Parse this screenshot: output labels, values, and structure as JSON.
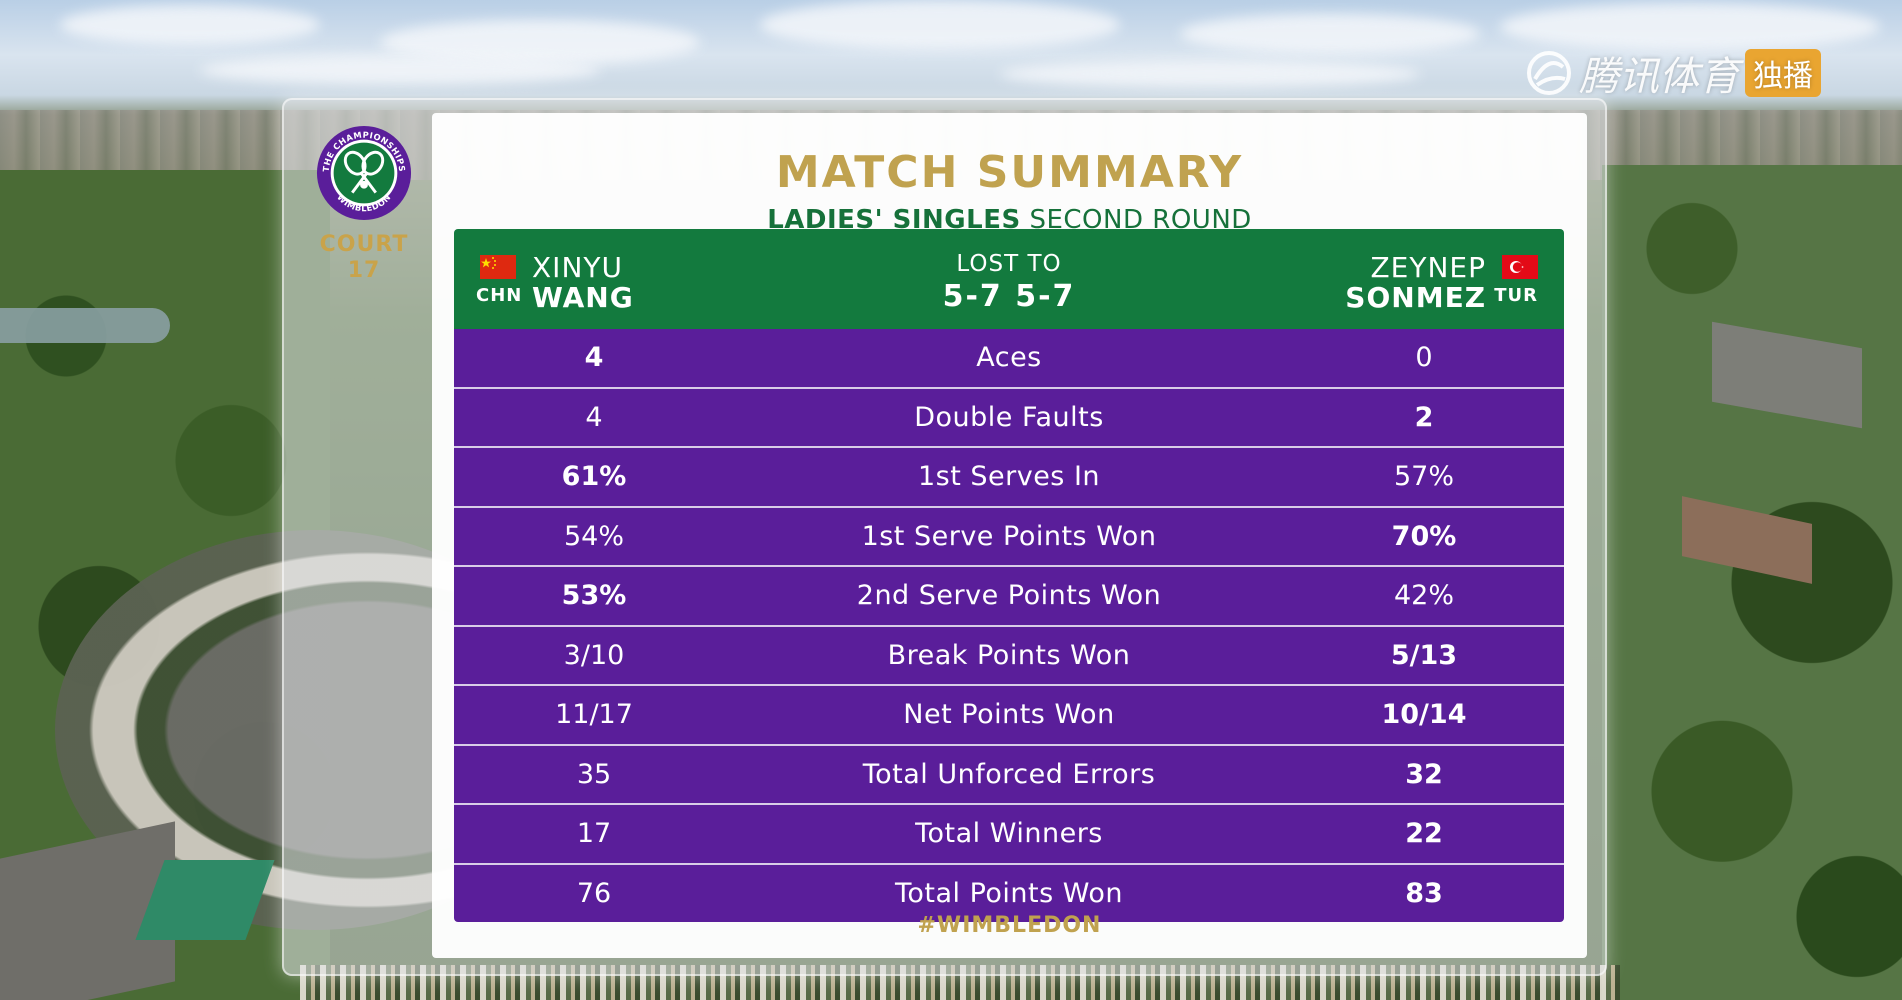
{
  "watermark": {
    "text": "腾讯体育",
    "badge": "独播"
  },
  "court": {
    "label": "COURT",
    "number": "17"
  },
  "logo": {
    "ring_text": "THE CHAMPIONSHIPS · WIMBLEDON",
    "colors": {
      "ring": "#5a1e9a",
      "inner": "#137a3e",
      "rackets": "#ffffff"
    }
  },
  "summary": {
    "title": "MATCH SUMMARY",
    "subtitle_bold": "LADIES' SINGLES",
    "subtitle_rest": "SECOND ROUND",
    "hashtag": "#WIMBLEDON"
  },
  "match": {
    "player1": {
      "first": "XINYU",
      "last": "WANG",
      "country": "CHN",
      "flag": "china-flag"
    },
    "player2": {
      "first": "ZEYNEP",
      "last": "SONMEZ",
      "country": "TUR",
      "flag": "turkey-flag"
    },
    "result_label": "LOST TO",
    "score": "5-7 5-7"
  },
  "stats": [
    {
      "label": "Aces",
      "p1": "4",
      "p2": "0",
      "p1_bold": true,
      "p2_bold": false
    },
    {
      "label": "Double Faults",
      "p1": "4",
      "p2": "2",
      "p1_bold": false,
      "p2_bold": true
    },
    {
      "label": "1st Serves In",
      "p1": "61%",
      "p2": "57%",
      "p1_bold": true,
      "p2_bold": false
    },
    {
      "label": "1st Serve Points Won",
      "p1": "54%",
      "p2": "70%",
      "p1_bold": false,
      "p2_bold": true
    },
    {
      "label": "2nd Serve Points Won",
      "p1": "53%",
      "p2": "42%",
      "p1_bold": true,
      "p2_bold": false
    },
    {
      "label": "Break Points Won",
      "p1": "3/10",
      "p2": "5/13",
      "p1_bold": false,
      "p2_bold": true
    },
    {
      "label": "Net Points Won",
      "p1": "11/17",
      "p2": "10/14",
      "p1_bold": false,
      "p2_bold": true
    },
    {
      "label": "Total Unforced Errors",
      "p1": "35",
      "p2": "32",
      "p1_bold": false,
      "p2_bold": true
    },
    {
      "label": "Total Winners",
      "p1": "17",
      "p2": "22",
      "p1_bold": false,
      "p2_bold": true
    },
    {
      "label": "Total Points Won",
      "p1": "76",
      "p2": "83",
      "p1_bold": false,
      "p2_bold": true
    }
  ],
  "colors": {
    "gold": "#c0a24f",
    "green": "#137a3e",
    "purple": "#5a1e9a"
  }
}
